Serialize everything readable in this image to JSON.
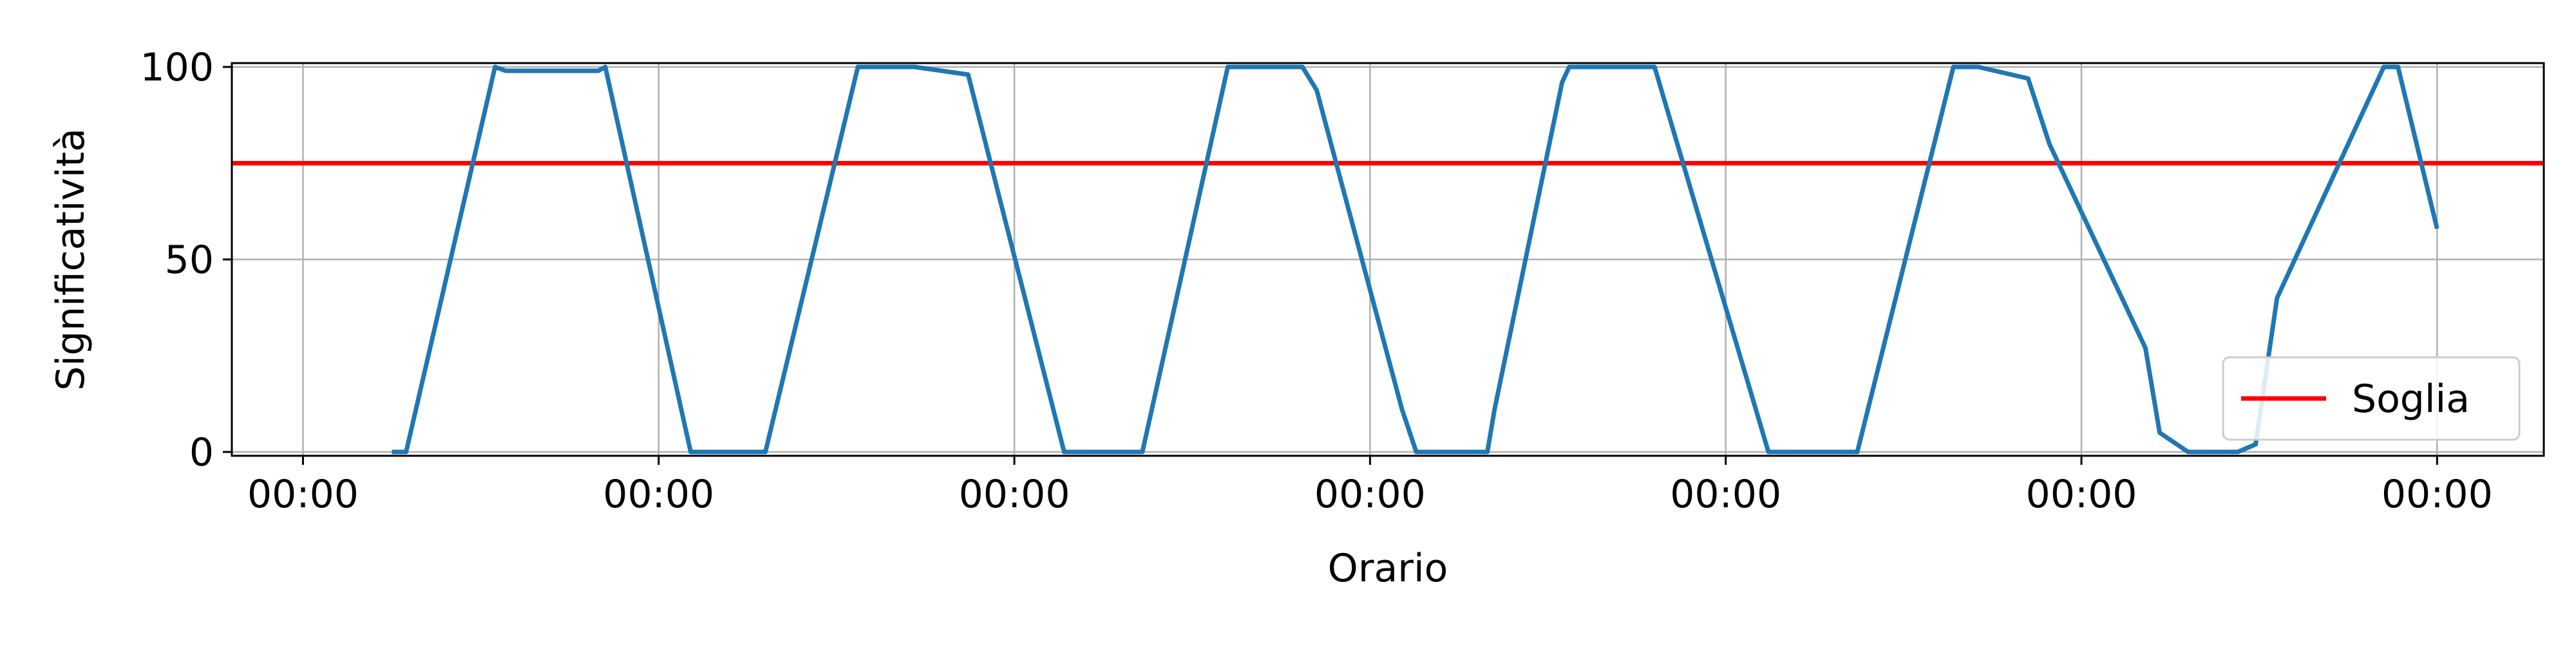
{
  "chart_data": {
    "type": "line",
    "title": "",
    "xlabel": "Orario",
    "ylabel": "Significatività",
    "xlim": [
      -0.2,
      6.3
    ],
    "ylim": [
      -1,
      101
    ],
    "x_ticks": [
      0,
      1,
      2,
      3,
      4,
      5,
      6
    ],
    "x_tick_labels": [
      "00:00",
      "00:00",
      "00:00",
      "00:00",
      "00:00",
      "00:00",
      "00:00"
    ],
    "y_ticks": [
      0,
      50,
      100
    ],
    "y_tick_labels": [
      "0",
      "50",
      "100"
    ],
    "grid": true,
    "legend": {
      "position": "lower right",
      "entries": [
        "Soglia"
      ]
    },
    "threshold": {
      "name": "Soglia",
      "value": 75,
      "color": "#ff0000"
    },
    "series": [
      {
        "color": "#1f77b4",
        "x": [
          0.25,
          0.29,
          0.54,
          0.57,
          0.83,
          0.85,
          1.09,
          1.3,
          1.56,
          1.72,
          1.87,
          2.14,
          2.36,
          2.6,
          2.81,
          2.85,
          3.09,
          3.13,
          3.33,
          3.35,
          3.54,
          3.56,
          3.8,
          4.12,
          4.37,
          4.64,
          4.71,
          4.85,
          4.91,
          5.18,
          5.22,
          5.3,
          5.44,
          5.49,
          5.55,
          5.85,
          5.89,
          6.0
        ],
        "y": [
          0,
          0,
          100,
          99,
          99,
          100,
          0,
          0,
          100,
          100,
          98,
          0,
          0,
          100,
          100,
          94,
          11,
          0,
          0,
          11,
          96,
          100,
          100,
          0,
          0,
          100,
          100,
          97,
          80,
          27,
          5,
          0,
          0,
          2,
          40,
          100,
          100,
          58
        ]
      }
    ]
  }
}
